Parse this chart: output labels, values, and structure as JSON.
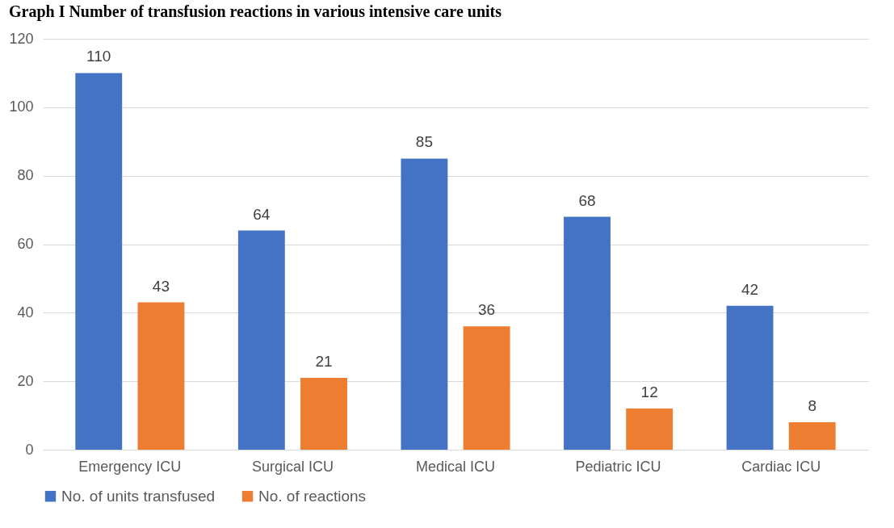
{
  "chart_data": {
    "type": "bar",
    "title": "Graph I Number of transfusion reactions in various intensive care units",
    "categories": [
      "Emergency ICU",
      "Surgical ICU",
      "Medical ICU",
      "Pediatric ICU",
      "Cardiac ICU"
    ],
    "series": [
      {
        "name": "No. of units transfused",
        "color": "#4472c4",
        "values": [
          110,
          64,
          85,
          68,
          42
        ]
      },
      {
        "name": "No. of reactions",
        "color": "#ed7d31",
        "values": [
          43,
          21,
          36,
          12,
          8
        ]
      }
    ],
    "ylim": [
      0,
      120
    ],
    "yticks": [
      0,
      20,
      40,
      60,
      80,
      100,
      120
    ],
    "grid": "y",
    "legend": "bottom",
    "data_labels": true
  }
}
